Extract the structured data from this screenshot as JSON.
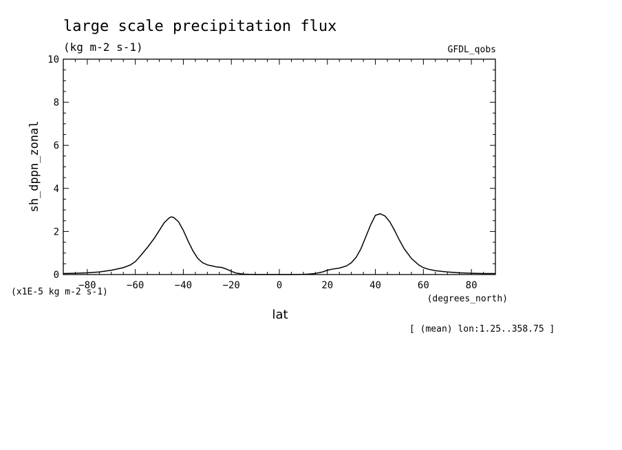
{
  "chart_data": {
    "type": "line",
    "title": "large scale precipitation flux",
    "subtitle": "(kg m-2 s-1)",
    "dataset_label": "GFDL_qobs",
    "ylabel": "sh_dppn_zonal",
    "y_units": "(x1E-5 kg m-2 s-1)",
    "xlabel": "lat",
    "x_units": "(degrees_north)",
    "footnote": "[ (mean) lon:1.25..358.75 ]",
    "xlim": [
      -90,
      90
    ],
    "ylim": [
      0,
      10
    ],
    "x_ticks": [
      -80,
      -60,
      -40,
      -20,
      0,
      20,
      40,
      60,
      80
    ],
    "y_ticks": [
      0,
      2,
      4,
      6,
      8,
      10
    ],
    "grid": false,
    "series": [
      {
        "x": [
          -90,
          -85,
          -80,
          -75,
          -70,
          -65,
          -62,
          -60,
          -58,
          -55,
          -52,
          -50,
          -48,
          -46,
          -45,
          -44,
          -42,
          -40,
          -38,
          -36,
          -34,
          -32,
          -30,
          -28,
          -26,
          -24,
          -22,
          -20,
          -18,
          -15,
          -12,
          -10,
          -5,
          0,
          5,
          10,
          12,
          15,
          18,
          20,
          22,
          25,
          28,
          30,
          32,
          34,
          36,
          38,
          40,
          42,
          44,
          46,
          48,
          50,
          52,
          55,
          58,
          60,
          62,
          65,
          70,
          75,
          80,
          85,
          88,
          90
        ],
        "y": [
          0.05,
          0.06,
          0.08,
          0.12,
          0.2,
          0.32,
          0.45,
          0.6,
          0.85,
          1.25,
          1.7,
          2.05,
          2.4,
          2.62,
          2.68,
          2.65,
          2.45,
          2.05,
          1.55,
          1.1,
          0.75,
          0.55,
          0.45,
          0.4,
          0.35,
          0.33,
          0.25,
          0.15,
          0.07,
          0.02,
          0.01,
          0.0,
          0.0,
          0.0,
          0.0,
          0.01,
          0.02,
          0.05,
          0.12,
          0.2,
          0.25,
          0.3,
          0.4,
          0.55,
          0.8,
          1.2,
          1.75,
          2.3,
          2.75,
          2.82,
          2.72,
          2.45,
          2.05,
          1.6,
          1.2,
          0.75,
          0.45,
          0.32,
          0.25,
          0.18,
          0.12,
          0.08,
          0.06,
          0.05,
          0.05,
          0.05
        ]
      }
    ]
  }
}
